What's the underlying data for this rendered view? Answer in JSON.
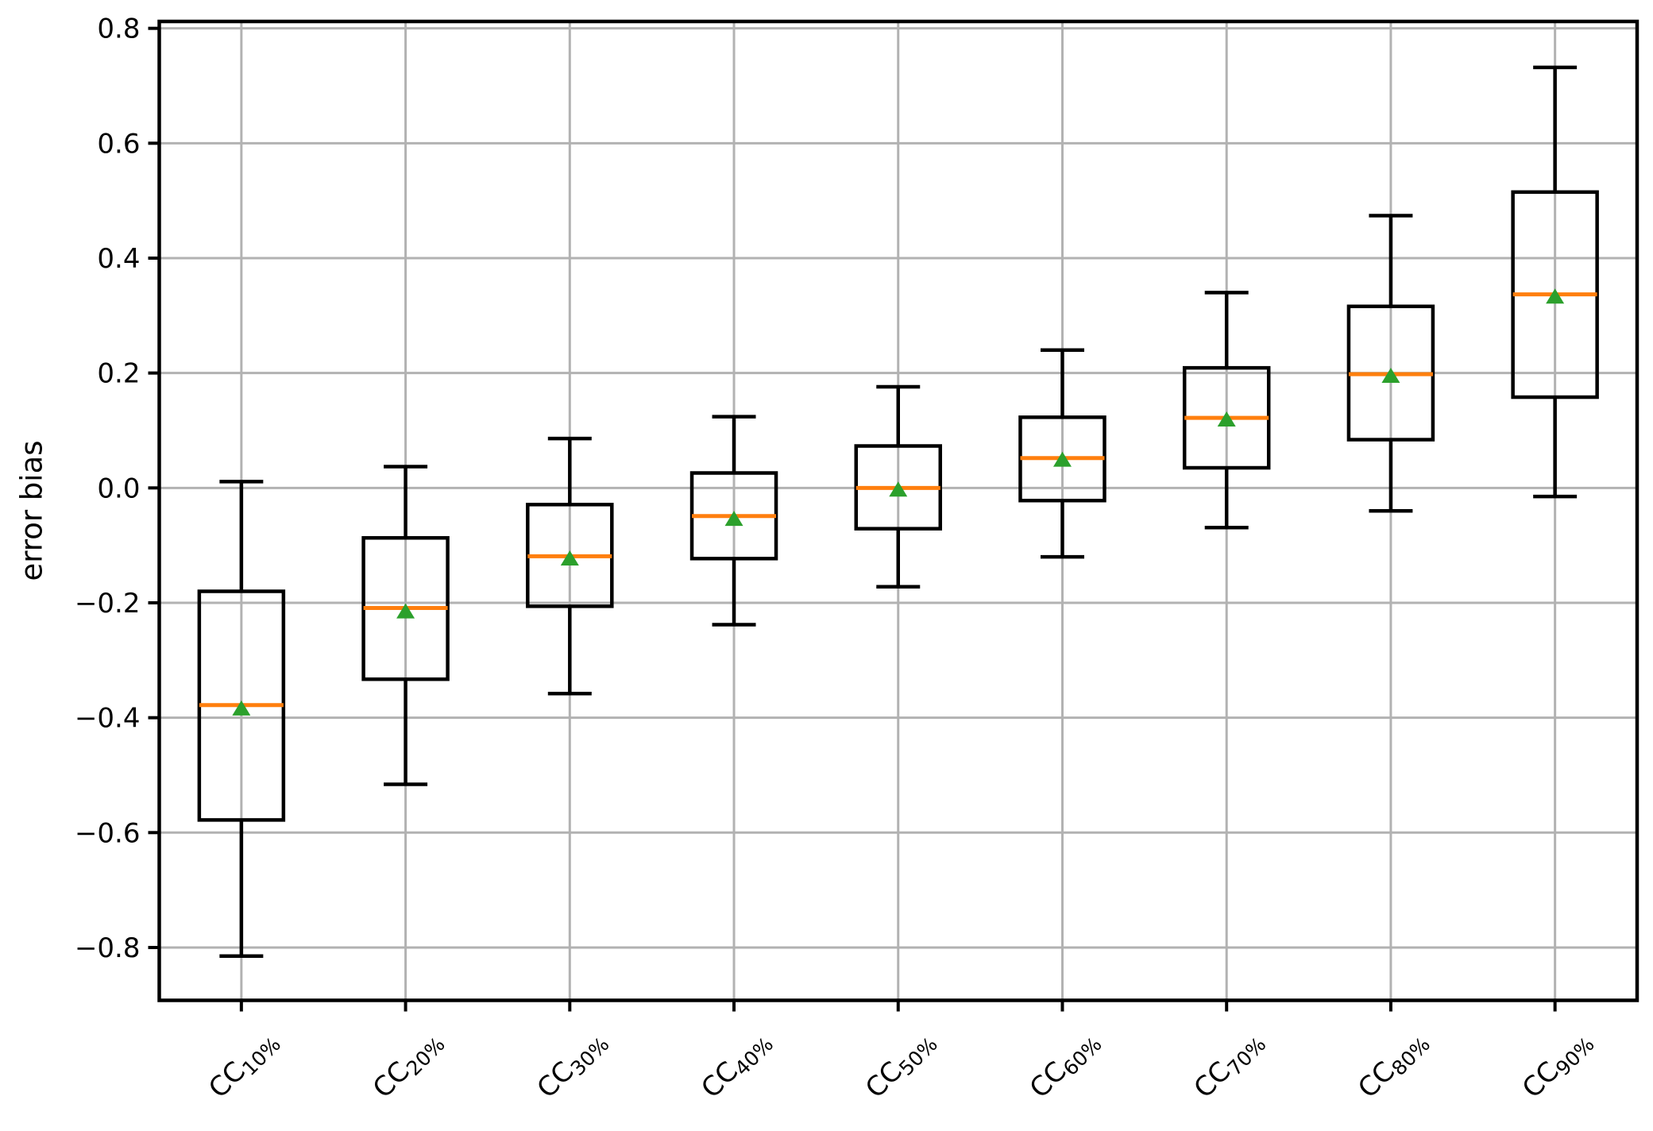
{
  "figure": {
    "background": "#ffffff"
  },
  "chart_data": {
    "type": "boxplot",
    "title": "",
    "xlabel": "",
    "ylabel": "error bias",
    "grid": true,
    "legend": false,
    "ylim": [
      -0.892,
      0.812
    ],
    "yticks": [
      0.8,
      0.6,
      0.4,
      0.2,
      0.0,
      -0.2,
      -0.4,
      -0.6,
      -0.8
    ],
    "ytick_labels": [
      "0.8",
      "0.6",
      "0.4",
      "0.2",
      "0.0",
      "−0.2",
      "−0.4",
      "−0.6",
      "−0.8"
    ],
    "categories": [
      {
        "base": "CC",
        "sub": "10%"
      },
      {
        "base": "CC",
        "sub": "20%"
      },
      {
        "base": "CC",
        "sub": "30%"
      },
      {
        "base": "CC",
        "sub": "40%"
      },
      {
        "base": "CC",
        "sub": "50%"
      },
      {
        "base": "CC",
        "sub": "60%"
      },
      {
        "base": "CC",
        "sub": "70%"
      },
      {
        "base": "CC",
        "sub": "80%"
      },
      {
        "base": "CC",
        "sub": "90%"
      }
    ],
    "boxes": [
      {
        "label": "CC10%",
        "whisker_low": -0.815,
        "q1": -0.578,
        "median": -0.378,
        "mean": -0.383,
        "q3": -0.18,
        "whisker_high": 0.011
      },
      {
        "label": "CC20%",
        "whisker_low": -0.516,
        "q1": -0.333,
        "median": -0.209,
        "mean": -0.214,
        "q3": -0.087,
        "whisker_high": 0.037
      },
      {
        "label": "CC30%",
        "whisker_low": -0.358,
        "q1": -0.206,
        "median": -0.119,
        "mean": -0.122,
        "q3": -0.029,
        "whisker_high": 0.086
      },
      {
        "label": "CC40%",
        "whisker_low": -0.238,
        "q1": -0.123,
        "median": -0.049,
        "mean": -0.053,
        "q3": 0.026,
        "whisker_high": 0.124
      },
      {
        "label": "CC50%",
        "whisker_low": -0.172,
        "q1": -0.071,
        "median": 0.0,
        "mean": -0.002,
        "q3": 0.073,
        "whisker_high": 0.176
      },
      {
        "label": "CC60%",
        "whisker_low": -0.12,
        "q1": -0.022,
        "median": 0.052,
        "mean": 0.05,
        "q3": 0.123,
        "whisker_high": 0.24
      },
      {
        "label": "CC70%",
        "whisker_low": -0.069,
        "q1": 0.035,
        "median": 0.122,
        "mean": 0.12,
        "q3": 0.209,
        "whisker_high": 0.34
      },
      {
        "label": "CC80%",
        "whisker_low": -0.04,
        "q1": 0.084,
        "median": 0.198,
        "mean": 0.196,
        "q3": 0.316,
        "whisker_high": 0.474
      },
      {
        "label": "CC90%",
        "whisker_low": -0.015,
        "q1": 0.158,
        "median": 0.337,
        "mean": 0.334,
        "q3": 0.515,
        "whisker_high": 0.732
      }
    ],
    "colors": {
      "box_line": "#000000",
      "whisker_line": "#000000",
      "median_line": "#ff7f0e",
      "mean_marker": "#2ca02c",
      "grid_line": "#b2b2b2",
      "axis_line": "#000000",
      "text": "#000000",
      "background": "#ffffff"
    }
  }
}
